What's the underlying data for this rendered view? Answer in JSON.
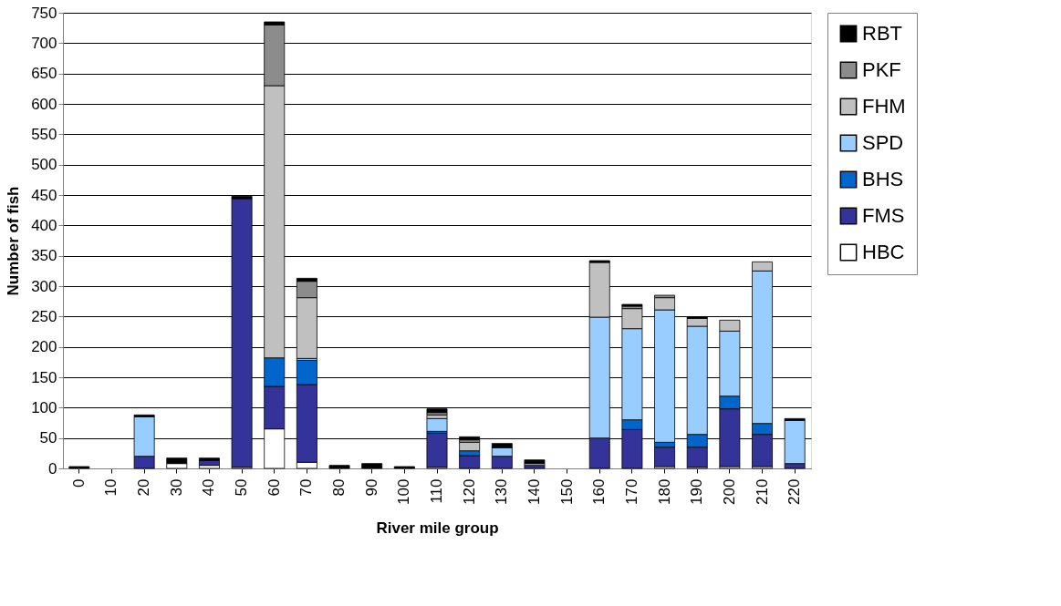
{
  "chart_data": {
    "type": "bar",
    "stacked": true,
    "xlabel": "River mile group",
    "ylabel": "Number of fish",
    "categories": [
      "0",
      "10",
      "20",
      "30",
      "40",
      "50",
      "60",
      "70",
      "80",
      "90",
      "100",
      "110",
      "120",
      "130",
      "140",
      "150",
      "160",
      "170",
      "180",
      "190",
      "200",
      "210",
      "220"
    ],
    "series": [
      {
        "name": "HBC",
        "color": "#ffffff",
        "values": [
          0,
          0,
          0,
          8,
          5,
          2,
          65,
          10,
          0,
          0,
          0,
          2,
          0,
          0,
          0,
          0,
          0,
          0,
          3,
          2,
          3,
          3,
          0
        ]
      },
      {
        "name": "FMS",
        "color": "#333399",
        "values": [
          0,
          0,
          20,
          0,
          8,
          442,
          70,
          128,
          0,
          0,
          0,
          56,
          21,
          20,
          5,
          0,
          50,
          64,
          32,
          33,
          95,
          53,
          8
        ]
      },
      {
        "name": "BHS",
        "color": "#0066cc",
        "values": [
          0,
          0,
          0,
          0,
          0,
          0,
          47,
          40,
          0,
          0,
          0,
          3,
          8,
          0,
          0,
          0,
          0,
          16,
          8,
          21,
          21,
          18,
          0
        ]
      },
      {
        "name": "SPD",
        "color": "#99ccff",
        "values": [
          0,
          0,
          65,
          0,
          0,
          0,
          0,
          3,
          0,
          0,
          0,
          21,
          0,
          14,
          3,
          0,
          199,
          150,
          218,
          178,
          107,
          251,
          71
        ]
      },
      {
        "name": "FHM",
        "color": "#c0c0c0",
        "values": [
          0,
          0,
          0,
          0,
          0,
          0,
          448,
          100,
          0,
          0,
          0,
          6,
          14,
          0,
          0,
          0,
          90,
          33,
          20,
          13,
          18,
          15,
          0
        ]
      },
      {
        "name": "PKF",
        "color": "#8c8c8c",
        "values": [
          0,
          0,
          0,
          0,
          0,
          0,
          100,
          27,
          0,
          0,
          0,
          4,
          4,
          0,
          0,
          0,
          0,
          4,
          4,
          0,
          0,
          0,
          0
        ]
      },
      {
        "name": "RBT",
        "color": "#000000",
        "values": [
          3,
          0,
          3,
          9,
          4,
          4,
          5,
          5,
          5,
          8,
          3,
          6,
          5,
          7,
          6,
          0,
          3,
          3,
          0,
          2,
          0,
          0,
          3
        ]
      }
    ],
    "ylim": [
      0,
      750
    ],
    "yticks": [
      0,
      50,
      100,
      150,
      200,
      250,
      300,
      350,
      400,
      450,
      500,
      550,
      600,
      650,
      700,
      750
    ],
    "grid": "y",
    "legend": "right"
  }
}
